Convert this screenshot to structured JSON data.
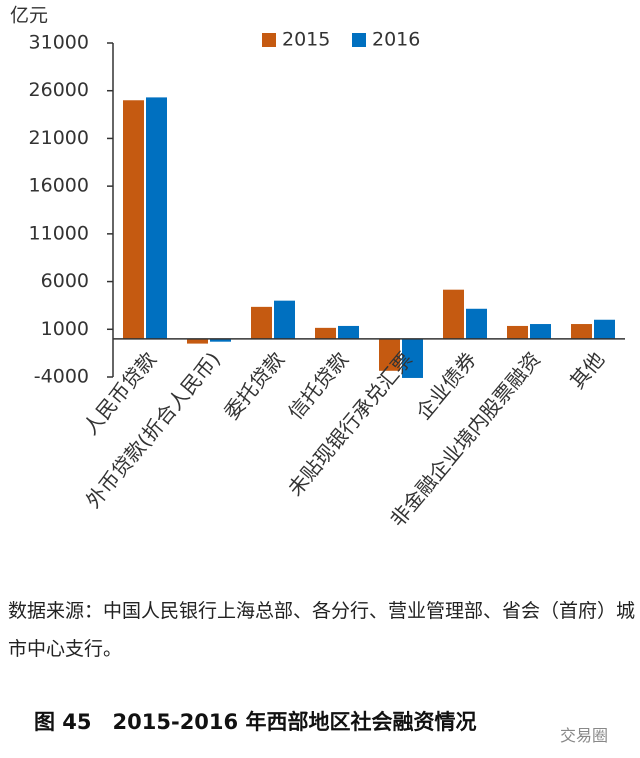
{
  "chart_data": {
    "type": "bar",
    "y_label": "亿元",
    "categories": [
      "人民币贷款",
      "外币贷款(折合人民币)",
      "委托贷款",
      "信托贷款",
      "未贴现银行承兑汇票",
      "企业债券",
      "非金融企业境内股票融资",
      "其他"
    ],
    "series": [
      {
        "name": "2015",
        "color": "#c55a11",
        "values": [
          25000,
          -500,
          3350,
          1150,
          -3350,
          5150,
          1350,
          1550
        ]
      },
      {
        "name": "2016",
        "color": "#0070c0",
        "values": [
          25300,
          -300,
          4000,
          1350,
          -4100,
          3150,
          1550,
          2000
        ]
      }
    ],
    "ylim": [
      -4000,
      31000
    ],
    "yticks": [
      -4000,
      1000,
      6000,
      11000,
      16000,
      21000,
      26000,
      31000
    ],
    "legend": "top"
  },
  "source": "数据来源：中国人民银行上海总部、各分行、营业管理部、省会（首府）城市中心支行。",
  "caption": "图 45　2015-2016 年西部地区社会融资情况",
  "watermark": "交易圈"
}
